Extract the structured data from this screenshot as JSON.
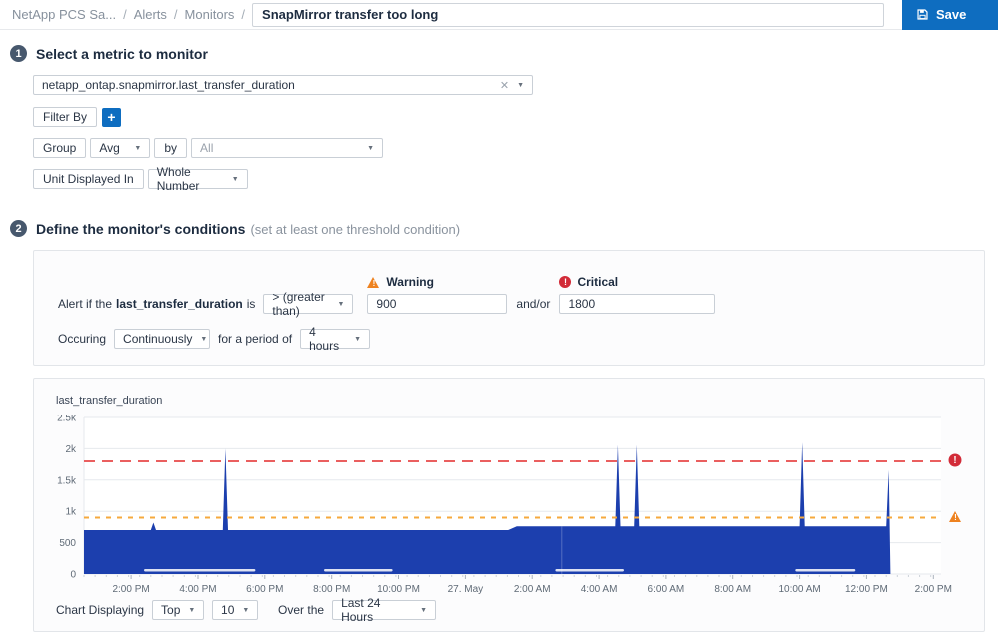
{
  "icons": {
    "caret": "▼",
    "clear": "✕",
    "plus": "+",
    "exclamation": "!"
  },
  "header": {
    "breadcrumb": [
      "NetApp PCS Sa...",
      "Alerts",
      "Monitors"
    ],
    "separator": "/",
    "title_value": "SnapMirror transfer too long",
    "save_label": "Save"
  },
  "step1": {
    "number": "1",
    "heading": "Select a metric to monitor",
    "metric_value": "netapp_ontap.snapmirror.last_transfer_duration",
    "filter_by_label": "Filter By",
    "group_label": "Group",
    "group_fn_value": "Avg",
    "by_label": "by",
    "group_by_value": "All",
    "unit_label": "Unit Displayed In",
    "unit_value": "Whole Number"
  },
  "step2": {
    "number": "2",
    "heading": "Define the monitor's conditions",
    "heading_note": "(set at least one threshold condition)",
    "alert_prefix": "Alert if the",
    "alert_metric": "last_transfer_duration",
    "alert_suffix": "is",
    "operator_value": "> (greater than)",
    "warning_label": "Warning",
    "warning_value": "900",
    "andor_label": "and/or",
    "critical_label": "Critical",
    "critical_value": "1800",
    "occuring_label": "Occuring",
    "occurrence_value": "Continuously",
    "period_label": "for a period of",
    "period_value": "4 hours"
  },
  "chart_controls": {
    "displaying_label": "Chart Displaying",
    "top_value": "Top",
    "count_value": "10",
    "over_label": "Over the",
    "range_value": "Last 24 Hours"
  },
  "chart_data": {
    "type": "area",
    "title": "last_transfer_duration",
    "series_name": "last_transfer_duration",
    "y_ticks": [
      "2.5k",
      "2k",
      "1.5k",
      "1k",
      "500",
      "0"
    ],
    "y_max": 2500,
    "x_ticks": [
      "2:00 PM",
      "4:00 PM",
      "6:00 PM",
      "8:00 PM",
      "10:00 PM",
      "27. May",
      "2:00 AM",
      "4:00 AM",
      "6:00 AM",
      "8:00 AM",
      "10:00 AM",
      "12:00 PM",
      "2:00 PM"
    ],
    "x_tick_start": 0.055,
    "x_tick_step": 0.078,
    "x_range_label": "Last 24 Hours",
    "grid": true,
    "thresholds": {
      "warning": 900,
      "critical": 1800
    },
    "baseline_value": 700,
    "baseline_value_late": 760,
    "points": [
      [
        0.0,
        700
      ],
      [
        0.078,
        700
      ],
      [
        0.081,
        820
      ],
      [
        0.084,
        700
      ],
      [
        0.162,
        700
      ],
      [
        0.165,
        2000
      ],
      [
        0.168,
        700
      ],
      [
        0.495,
        700
      ],
      [
        0.505,
        760
      ],
      [
        0.62,
        760
      ],
      [
        0.623,
        2060
      ],
      [
        0.626,
        760
      ],
      [
        0.642,
        760
      ],
      [
        0.645,
        2060
      ],
      [
        0.648,
        760
      ],
      [
        0.835,
        760
      ],
      [
        0.838,
        2100
      ],
      [
        0.841,
        760
      ],
      [
        0.936,
        760
      ],
      [
        0.939,
        1660
      ],
      [
        0.941,
        0
      ]
    ],
    "overlay_segments": [
      [
        0.07,
        0.2
      ],
      [
        0.28,
        0.36
      ],
      [
        0.55,
        0.63
      ],
      [
        0.83,
        0.9
      ]
    ],
    "light_vline": 0.557,
    "colors": {
      "area": "#1c3fae",
      "critical": "#ea5f5f",
      "warning": "#f6a93d",
      "grid": "#e6e9ed",
      "tick_text": "#5f6a76"
    }
  }
}
